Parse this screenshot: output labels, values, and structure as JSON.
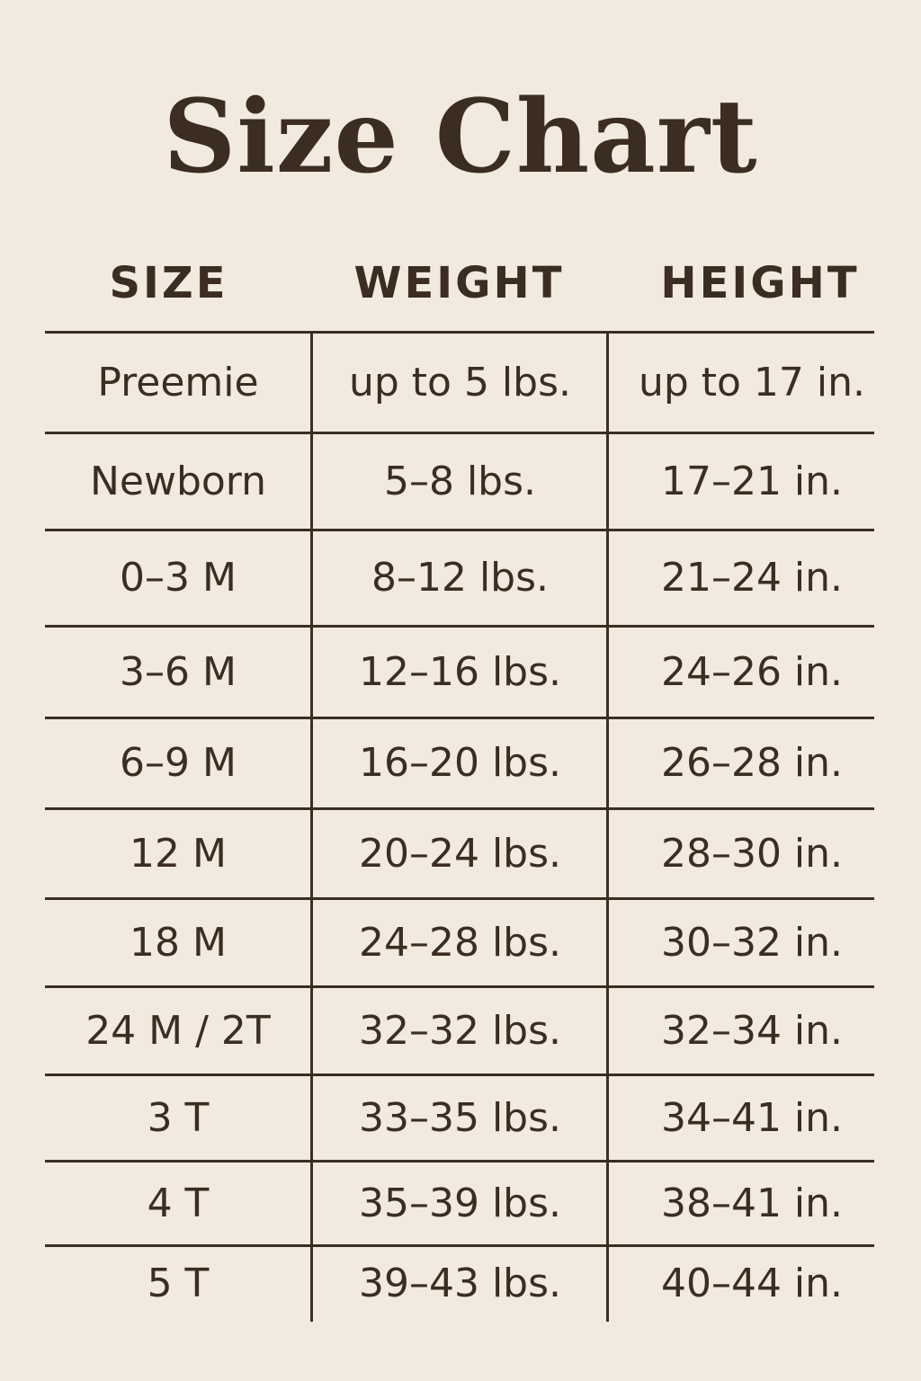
{
  "title": "Size Chart",
  "columns": [
    "SIZE",
    "WEIGHT",
    "HEIGHT"
  ],
  "rows": [
    [
      "Preemie",
      "up to 5 lbs.",
      "up to 17 in."
    ],
    [
      "Newborn",
      "5–8 lbs.",
      "17–21 in."
    ],
    [
      "0–3 M",
      "8–12 lbs.",
      "21–24 in."
    ],
    [
      "3–6 M",
      "12–16 lbs.",
      "24–26 in."
    ],
    [
      "6–9 M",
      "16–20 lbs.",
      "26–28 in."
    ],
    [
      "12 M",
      "20–24 lbs.",
      "28–30 in."
    ],
    [
      "18 M",
      "24–28 lbs.",
      "30–32 in."
    ],
    [
      "24 M / 2T",
      "32–32 lbs.",
      "32–34 in."
    ],
    [
      "3 T",
      "33–35 lbs.",
      "34–41 in."
    ],
    [
      "4 T",
      "35–39 lbs.",
      "38–41 in."
    ],
    [
      "5 T",
      "39–43 lbs.",
      "40–44 in."
    ]
  ],
  "colors": {
    "background": "#f2eadf",
    "text": "#3b2d22"
  }
}
